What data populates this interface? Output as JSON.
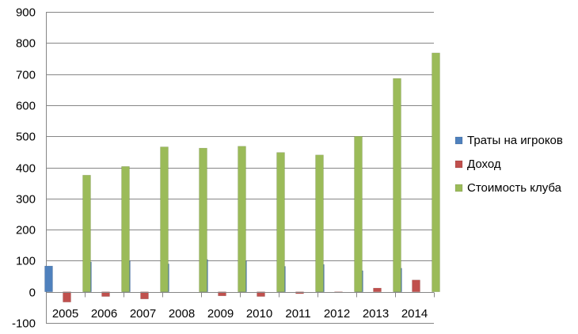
{
  "chart_data": {
    "type": "bar",
    "title": "",
    "xlabel": "",
    "ylabel": "",
    "categories": [
      "2005",
      "2006",
      "2007",
      "2008",
      "2009",
      "2010",
      "2011",
      "2012",
      "2013",
      "2014"
    ],
    "series": [
      {
        "name": "Траты на игроков",
        "color": "#4f81bd",
        "values": [
          83,
          96,
          100,
          90,
          104,
          100,
          82,
          88,
          68,
          76
        ]
      },
      {
        "name": "Доход",
        "color": "#c0504d",
        "values": [
          -33,
          -15,
          -23,
          0,
          -13,
          -15,
          -6,
          -2,
          12,
          38
        ]
      },
      {
        "name": "Стоимость клуба",
        "color": "#9bbb59",
        "values": [
          375,
          403,
          466,
          462,
          468,
          448,
          440,
          500,
          686,
          768
        ]
      }
    ],
    "ylim": [
      -100,
      900
    ],
    "yticks": [
      "-100",
      "0",
      "100",
      "200",
      "300",
      "400",
      "500",
      "600",
      "700",
      "800",
      "900"
    ],
    "grid": true,
    "legend_position": "right"
  }
}
